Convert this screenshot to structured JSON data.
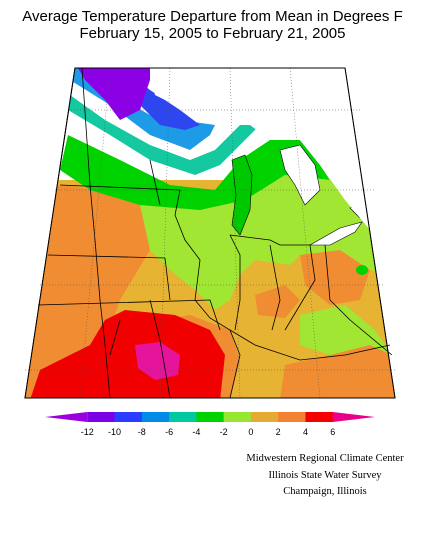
{
  "title": {
    "line1": "Average Temperature Departure from Mean in Degrees F",
    "line2": "February 15, 2005 to February 21, 2005"
  },
  "legend": {
    "ticks": [
      "-12",
      "-10",
      "-8",
      "-6",
      "-4",
      "-2",
      "0",
      "2",
      "4",
      "6"
    ],
    "colors": [
      "#9b00dc",
      "#7a00e6",
      "#2a3cff",
      "#008ce6",
      "#00c8a0",
      "#00d200",
      "#96e632",
      "#e6aa32",
      "#f58232",
      "#f50000",
      "#e6008c"
    ]
  },
  "credits": {
    "line1": "Midwestern Regional Climate Center",
    "line2": "Illinois State Water Survey",
    "line3": "Champaign, Illinois"
  },
  "zone_colors": {
    "purple": "#8c00e6",
    "blue": "#2d46f0",
    "cyan": "#1e9be6",
    "teal": "#14c8a0",
    "green": "#00d200",
    "lightgreen": "#a0e632",
    "yellow": "#e6b432",
    "orange": "#f08c32",
    "red": "#f00000",
    "magenta": "#e6149b"
  }
}
